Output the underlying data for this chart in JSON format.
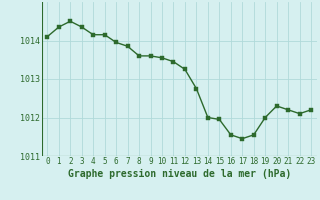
{
  "x": [
    0,
    1,
    2,
    3,
    4,
    5,
    6,
    7,
    8,
    9,
    10,
    11,
    12,
    13,
    14,
    15,
    16,
    17,
    18,
    19,
    20,
    21,
    22,
    23
  ],
  "y": [
    1014.1,
    1014.35,
    1014.5,
    1014.35,
    1014.15,
    1014.15,
    1013.95,
    1013.85,
    1013.6,
    1013.6,
    1013.55,
    1013.45,
    1013.25,
    1012.75,
    1012.0,
    1011.95,
    1011.55,
    1011.45,
    1011.55,
    1012.0,
    1012.3,
    1012.2,
    1012.1,
    1012.2
  ],
  "ylim": [
    1011.0,
    1015.0
  ],
  "xlim": [
    -0.5,
    23.5
  ],
  "yticks": [
    1011,
    1012,
    1013,
    1014
  ],
  "xtick_labels": [
    "0",
    "1",
    "2",
    "3",
    "4",
    "5",
    "6",
    "7",
    "8",
    "9",
    "10",
    "11",
    "12",
    "13",
    "14",
    "15",
    "16",
    "17",
    "18",
    "19",
    "20",
    "21",
    "22",
    "23"
  ],
  "line_color": "#2d6a2d",
  "marker_color": "#2d6a2d",
  "bg_color": "#d6f0f0",
  "grid_color": "#b0dada",
  "xlabel": "Graphe pression niveau de la mer (hPa)",
  "xlabel_color": "#2d6a2d",
  "xlabel_fontsize": 7.0,
  "tick_fontsize": 5.5,
  "tick_color": "#2d6a2d",
  "line_width": 1.0,
  "marker_size": 2.2,
  "ytick_fontsize": 6.0
}
